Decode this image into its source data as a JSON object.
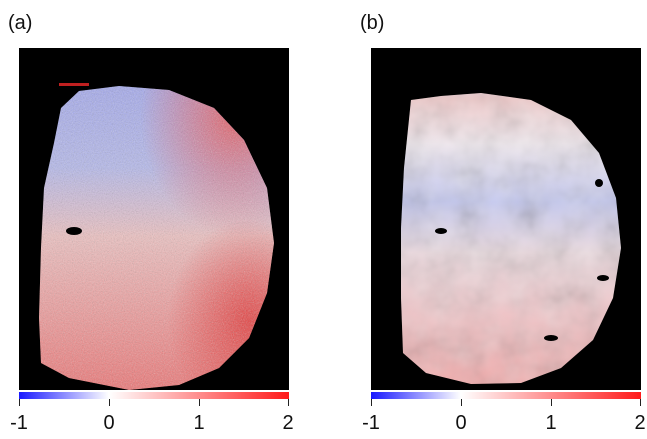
{
  "panels": [
    {
      "label": "(a)",
      "colorbar": {
        "ticks": [
          "-1",
          "0",
          "1",
          "2"
        ],
        "min": -1,
        "max": 2,
        "colors": [
          "#1a1aff",
          "#ffffff",
          "#ff1a1a"
        ]
      }
    },
    {
      "label": "(b)",
      "colorbar": {
        "ticks": [
          "-1",
          "0",
          "1",
          "2"
        ],
        "min": -1,
        "max": 2,
        "colors": [
          "#1a1aff",
          "#ffffff",
          "#ff1a1a"
        ]
      }
    }
  ]
}
